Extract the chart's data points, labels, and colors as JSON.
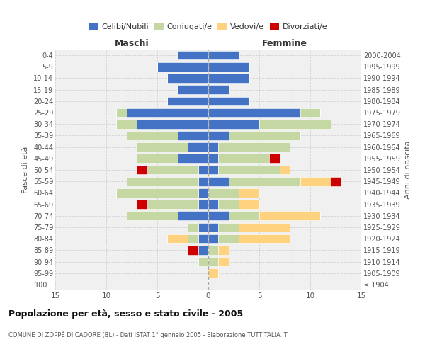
{
  "age_groups": [
    "100+",
    "95-99",
    "90-94",
    "85-89",
    "80-84",
    "75-79",
    "70-74",
    "65-69",
    "60-64",
    "55-59",
    "50-54",
    "45-49",
    "40-44",
    "35-39",
    "30-34",
    "25-29",
    "20-24",
    "15-19",
    "10-14",
    "5-9",
    "0-4"
  ],
  "birth_years": [
    "≤ 1904",
    "1905-1909",
    "1910-1914",
    "1915-1919",
    "1920-1924",
    "1925-1929",
    "1930-1934",
    "1935-1939",
    "1940-1944",
    "1945-1949",
    "1950-1954",
    "1955-1959",
    "1960-1964",
    "1965-1969",
    "1970-1974",
    "1975-1979",
    "1980-1984",
    "1985-1989",
    "1990-1994",
    "1995-1999",
    "2000-2004"
  ],
  "male": {
    "celibi": [
      0,
      0,
      0,
      1,
      1,
      1,
      3,
      1,
      1,
      1,
      1,
      3,
      2,
      3,
      7,
      8,
      4,
      3,
      4,
      5,
      3
    ],
    "coniugati": [
      0,
      0,
      1,
      0,
      1,
      1,
      5,
      5,
      8,
      7,
      5,
      4,
      5,
      5,
      2,
      1,
      0,
      0,
      0,
      0,
      0
    ],
    "vedovi": [
      0,
      0,
      0,
      0,
      2,
      0,
      0,
      0,
      0,
      0,
      0,
      0,
      0,
      0,
      0,
      0,
      0,
      0,
      0,
      0,
      0
    ],
    "divorziati": [
      0,
      0,
      0,
      1,
      0,
      0,
      0,
      1,
      0,
      0,
      1,
      0,
      0,
      0,
      0,
      0,
      0,
      0,
      0,
      0,
      0
    ]
  },
  "female": {
    "nubili": [
      0,
      0,
      0,
      0,
      1,
      1,
      2,
      1,
      0,
      2,
      1,
      1,
      1,
      2,
      5,
      9,
      4,
      2,
      4,
      4,
      3
    ],
    "coniugate": [
      0,
      0,
      1,
      1,
      2,
      2,
      3,
      2,
      3,
      7,
      6,
      5,
      7,
      7,
      7,
      2,
      0,
      0,
      0,
      0,
      0
    ],
    "vedove": [
      0,
      1,
      1,
      1,
      5,
      5,
      6,
      2,
      2,
      3,
      1,
      0,
      0,
      0,
      0,
      0,
      0,
      0,
      0,
      0,
      0
    ],
    "divorziate": [
      0,
      0,
      0,
      0,
      0,
      0,
      0,
      0,
      0,
      1,
      0,
      1,
      0,
      0,
      0,
      0,
      0,
      0,
      0,
      0,
      0
    ]
  },
  "colors": {
    "celibi_nubili": "#4472c4",
    "coniugati": "#c5d8a4",
    "vedovi": "#ffd280",
    "divorziati": "#cc0000"
  },
  "title": "Popolazione per età, sesso e stato civile - 2005",
  "subtitle": "COMUNE DI ZOPPÈ DI CADORE (BL) - Dati ISTAT 1° gennaio 2005 - Elaborazione TUTTITALIA.IT",
  "xlabel_maschi": "Maschi",
  "xlabel_femmine": "Femmine",
  "ylabel_left": "Fasce di età",
  "ylabel_right": "Anni di nascita",
  "xlim": 15,
  "bg_color": "#ffffff",
  "grid_color": "#cccccc",
  "plot_bg": "#f0f0f0"
}
